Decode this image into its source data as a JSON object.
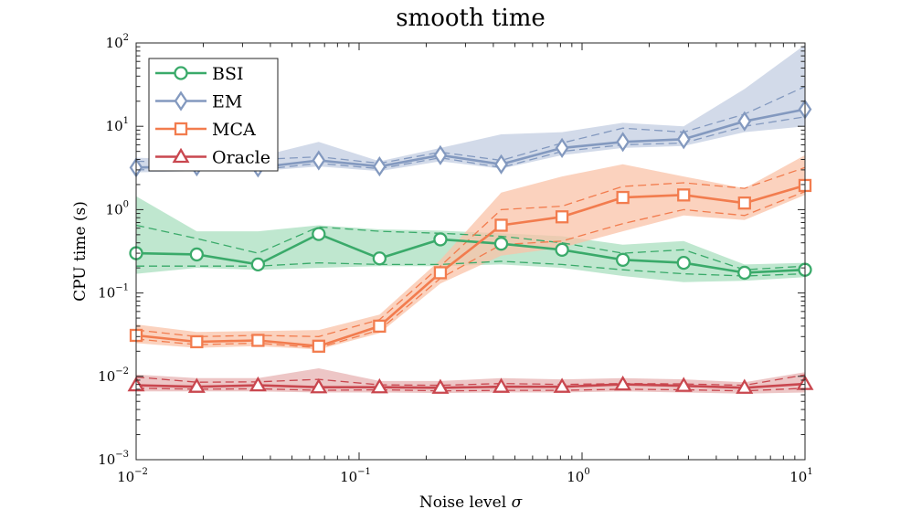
{
  "chart_data": {
    "type": "line",
    "title": "smooth time",
    "xlabel": "Noise level",
    "xlabel_symbol": "σ",
    "ylabel": "CPU time (s)",
    "xscale": "log",
    "yscale": "log",
    "xlim": [
      0.01,
      10
    ],
    "ylim": [
      0.001,
      100
    ],
    "x_ticks": [
      {
        "value": 0.01,
        "base": "10",
        "exp": "−2"
      },
      {
        "value": 0.1,
        "base": "10",
        "exp": "−1"
      },
      {
        "value": 1,
        "base": "10",
        "exp": "0"
      },
      {
        "value": 10,
        "base": "10",
        "exp": "1"
      }
    ],
    "y_ticks": [
      {
        "value": 0.001,
        "base": "10",
        "exp": "−3"
      },
      {
        "value": 0.01,
        "base": "10",
        "exp": "−2"
      },
      {
        "value": 0.1,
        "base": "10",
        "exp": "−1"
      },
      {
        "value": 1,
        "base": "10",
        "exp": "0"
      },
      {
        "value": 10,
        "base": "10",
        "exp": "1"
      },
      {
        "value": 100,
        "base": "10",
        "exp": "2"
      }
    ],
    "x": [
      0.01,
      0.0187,
      0.0352,
      0.0659,
      0.1235,
      0.2315,
      0.4339,
      0.8132,
      1.524,
      2.857,
      5.354,
      10
    ],
    "legend_position": "top-left",
    "series": [
      {
        "name": "BSI",
        "color": "#3aaa6a",
        "band_color": "#aadfbf",
        "marker": "circle",
        "values": [
          0.3,
          0.29,
          0.22,
          0.51,
          0.26,
          0.44,
          0.39,
          0.33,
          0.25,
          0.23,
          0.175,
          0.19
        ],
        "upper": [
          1.45,
          0.55,
          0.55,
          0.65,
          0.58,
          0.56,
          0.52,
          0.48,
          0.38,
          0.42,
          0.22,
          0.23
        ],
        "lower": [
          0.17,
          0.2,
          0.19,
          0.2,
          0.21,
          0.21,
          0.22,
          0.2,
          0.16,
          0.135,
          0.14,
          0.155
        ],
        "q_high": [
          0.65,
          0.45,
          0.3,
          0.62,
          0.55,
          0.52,
          0.48,
          0.4,
          0.3,
          0.33,
          0.19,
          0.21
        ],
        "q_low": [
          0.21,
          0.21,
          0.21,
          0.23,
          0.22,
          0.22,
          0.24,
          0.22,
          0.19,
          0.17,
          0.16,
          0.17
        ]
      },
      {
        "name": "EM",
        "color": "#8399bf",
        "band_color": "#c3cde2",
        "marker": "diamond",
        "values": [
          3.2,
          3.3,
          3.2,
          3.9,
          3.3,
          4.5,
          3.5,
          5.5,
          6.5,
          7.0,
          11.5,
          16.0
        ],
        "upper": [
          4.2,
          4.0,
          4.3,
          6.5,
          3.8,
          5.5,
          8.0,
          8.5,
          11.0,
          10.0,
          28.0,
          95.0
        ],
        "lower": [
          2.8,
          2.9,
          2.9,
          3.3,
          2.9,
          3.8,
          3.1,
          4.5,
          5.5,
          5.8,
          8.5,
          10.0
        ],
        "q_high": [
          3.8,
          3.7,
          4.0,
          4.3,
          3.6,
          4.9,
          3.9,
          6.3,
          9.5,
          8.5,
          14.0,
          30.0
        ],
        "q_low": [
          3.0,
          3.1,
          3.0,
          3.6,
          3.1,
          4.2,
          3.2,
          5.0,
          6.0,
          6.3,
          10.0,
          13.0
        ]
      },
      {
        "name": "MCA",
        "color": "#f27c4e",
        "band_color": "#fac3a8",
        "marker": "square",
        "values": [
          0.031,
          0.026,
          0.027,
          0.023,
          0.04,
          0.175,
          0.65,
          0.82,
          1.4,
          1.5,
          1.2,
          1.95
        ],
        "upper": [
          0.042,
          0.034,
          0.035,
          0.036,
          0.055,
          0.25,
          1.6,
          2.5,
          3.5,
          2.5,
          1.8,
          4.5
        ],
        "lower": [
          0.025,
          0.022,
          0.023,
          0.021,
          0.033,
          0.13,
          0.28,
          0.35,
          0.55,
          0.85,
          0.75,
          1.5
        ],
        "q_high": [
          0.036,
          0.03,
          0.031,
          0.03,
          0.048,
          0.21,
          1.0,
          1.1,
          1.9,
          2.1,
          1.8,
          3.2
        ],
        "q_low": [
          0.028,
          0.024,
          0.025,
          0.022,
          0.036,
          0.15,
          0.38,
          0.42,
          0.68,
          1.0,
          0.85,
          1.65
        ]
      },
      {
        "name": "Oracle",
        "color": "#c9474f",
        "band_color": "#e7b3b3",
        "marker": "triangle",
        "values": [
          0.0078,
          0.0075,
          0.0078,
          0.0074,
          0.0074,
          0.0073,
          0.0075,
          0.0075,
          0.008,
          0.0077,
          0.0073,
          0.0081
        ],
        "upper": [
          0.0105,
          0.0095,
          0.0095,
          0.0125,
          0.0088,
          0.0088,
          0.0095,
          0.0092,
          0.0095,
          0.0092,
          0.0085,
          0.0112
        ],
        "lower": [
          0.0066,
          0.0066,
          0.0066,
          0.0064,
          0.0064,
          0.0063,
          0.0064,
          0.0064,
          0.0066,
          0.0064,
          0.0062,
          0.0064
        ],
        "q_high": [
          0.0098,
          0.0085,
          0.0086,
          0.0092,
          0.0079,
          0.0078,
          0.0082,
          0.008,
          0.0082,
          0.0081,
          0.0078,
          0.0104
        ],
        "q_low": [
          0.0072,
          0.007,
          0.0071,
          0.0068,
          0.0069,
          0.0067,
          0.0068,
          0.0068,
          0.007,
          0.0069,
          0.0067,
          0.0072
        ]
      }
    ]
  }
}
